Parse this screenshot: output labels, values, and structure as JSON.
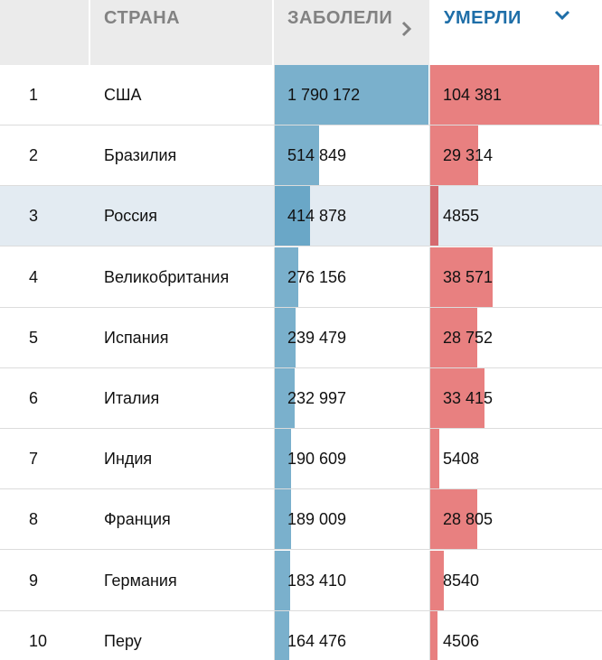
{
  "header": {
    "rank_label": "",
    "country_label": "СТРАНА",
    "cases_label": "ЗАБОЛЕЛИ",
    "deaths_label": "УМЕРЛИ",
    "cases_sort_icon": "chevron-right-icon",
    "deaths_sort_icon": "chevron-down-icon",
    "active_sort": "deaths"
  },
  "colors": {
    "header_bg": "#ebebeb",
    "header_text": "#828282",
    "active_header_text": "#1e6ea8",
    "cases_bar": "#7ab0cc",
    "deaths_bar": "#e88080",
    "highlight_row": "#e3ebf2"
  },
  "max": {
    "cases": 1790172,
    "deaths": 104381
  },
  "rows": [
    {
      "rank": "1",
      "country": "США",
      "cases": "1 790 172",
      "deaths": "104 381",
      "cases_n": 1790172,
      "deaths_n": 104381,
      "highlight": false
    },
    {
      "rank": "2",
      "country": "Бразилия",
      "cases": "514 849",
      "deaths": "29 314",
      "cases_n": 514849,
      "deaths_n": 29314,
      "highlight": false
    },
    {
      "rank": "3",
      "country": "Россия",
      "cases": "414 878",
      "deaths": "4855",
      "cases_n": 414878,
      "deaths_n": 4855,
      "highlight": true
    },
    {
      "rank": "4",
      "country": "Великобритания",
      "cases": "276 156",
      "deaths": "38 571",
      "cases_n": 276156,
      "deaths_n": 38571,
      "highlight": false
    },
    {
      "rank": "5",
      "country": "Испания",
      "cases": "239 479",
      "deaths": "28 752",
      "cases_n": 239479,
      "deaths_n": 28752,
      "highlight": false
    },
    {
      "rank": "6",
      "country": "Италия",
      "cases": "232 997",
      "deaths": "33 415",
      "cases_n": 232997,
      "deaths_n": 33415,
      "highlight": false
    },
    {
      "rank": "7",
      "country": "Индия",
      "cases": "190 609",
      "deaths": "5408",
      "cases_n": 190609,
      "deaths_n": 5408,
      "highlight": false
    },
    {
      "rank": "8",
      "country": "Франция",
      "cases": "189 009",
      "deaths": "28 805",
      "cases_n": 189009,
      "deaths_n": 28805,
      "highlight": false
    },
    {
      "rank": "9",
      "country": "Германия",
      "cases": "183 410",
      "deaths": "8540",
      "cases_n": 183410,
      "deaths_n": 8540,
      "highlight": false
    },
    {
      "rank": "10",
      "country": "Перу",
      "cases": "164 476",
      "deaths": "4506",
      "cases_n": 164476,
      "deaths_n": 4506,
      "highlight": false
    }
  ]
}
